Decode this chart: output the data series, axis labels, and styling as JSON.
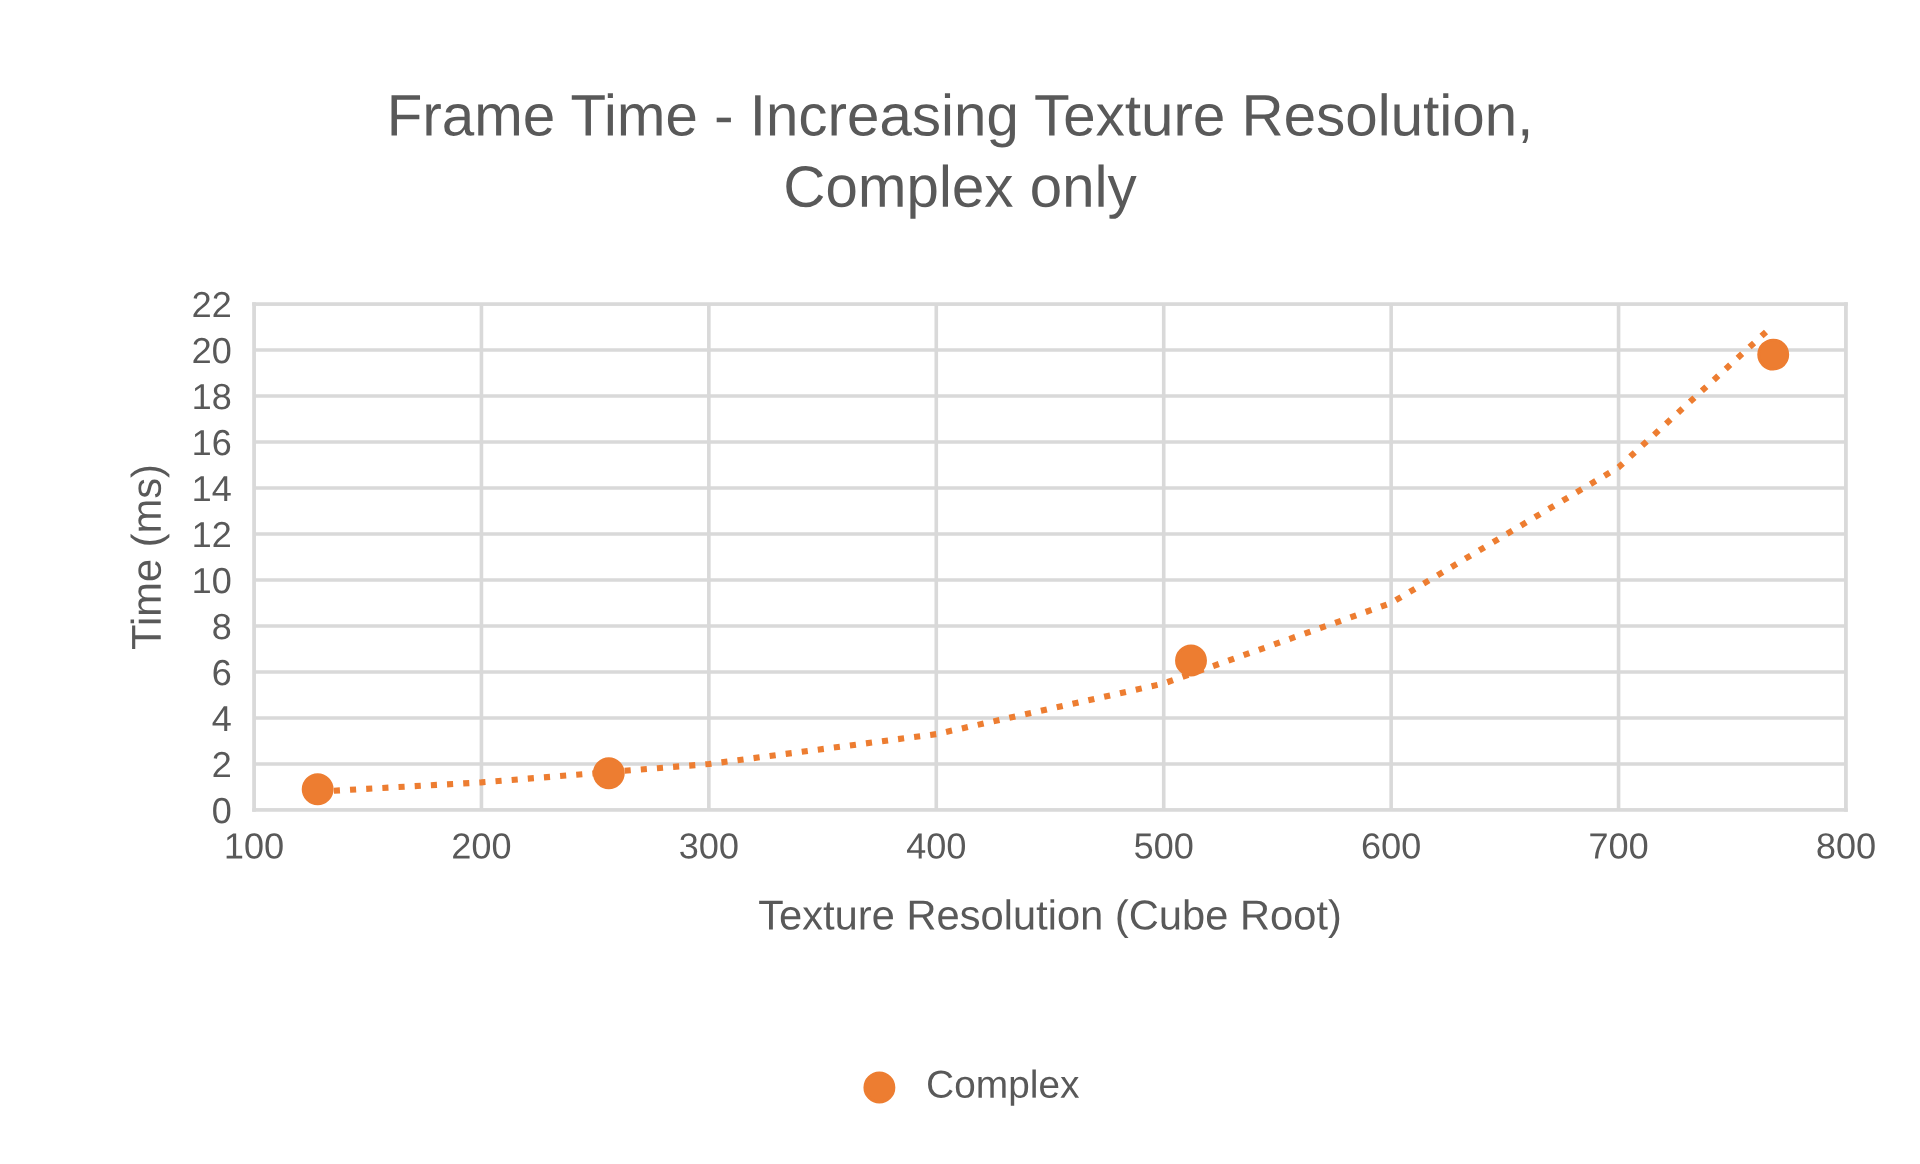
{
  "chart_data": {
    "type": "scatter",
    "title": "Frame Time - Increasing Texture Resolution,\nComplex only",
    "xlabel": "Texture Resolution (Cube Root)",
    "ylabel": "Time (ms)",
    "series": [
      {
        "name": "Complex",
        "color": "#ed7d31",
        "marker": "circle",
        "x": [
          128,
          256,
          512,
          768
        ],
        "values": [
          0.9,
          1.6,
          6.5,
          19.8
        ]
      },
      {
        "color": "#ed7d31",
        "type": "line",
        "line_style": "dotted",
        "marker": "none",
        "x": [
          128,
          200,
          300,
          400,
          500,
          600,
          700,
          765
        ],
        "values": [
          0.8,
          1.2,
          2.0,
          3.3,
          5.5,
          9.0,
          14.9,
          20.8
        ]
      }
    ],
    "xlim": [
      100,
      800
    ],
    "xticks": [
      100,
      200,
      300,
      400,
      500,
      600,
      700,
      800
    ],
    "ylim": [
      0,
      22
    ],
    "yticks": [
      0,
      2,
      4,
      6,
      8,
      10,
      12,
      14,
      16,
      18,
      20,
      22
    ],
    "grid": true,
    "legend": "bottom"
  }
}
